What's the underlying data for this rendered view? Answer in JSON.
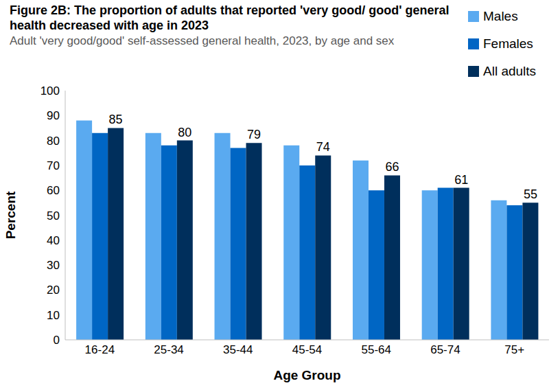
{
  "chart_data": {
    "type": "bar",
    "title": "Figure 2B: The proportion of adults that reported 'very good/ good' general health decreased with age in 2023",
    "subtitle": "Adult 'very good/good' self-assessed general health, 2023, by age and sex",
    "x_label": "Age Group",
    "y_label": "Percent",
    "categories": [
      "16-24",
      "25-34",
      "35-44",
      "45-54",
      "55-64",
      "65-74",
      "75+"
    ],
    "series": [
      {
        "name": "Males",
        "color": "#5aaaf0",
        "values": [
          88,
          83,
          83,
          78,
          72,
          60,
          56
        ]
      },
      {
        "name": "Females",
        "color": "#0066c4",
        "values": [
          83,
          78,
          77,
          70,
          60,
          61,
          54
        ]
      },
      {
        "name": "All adults",
        "color": "#002f5c",
        "values": [
          85,
          80,
          79,
          74,
          66,
          61,
          55
        ],
        "data_labels": true
      }
    ],
    "ylim": [
      0,
      100
    ],
    "yticks": [
      0,
      10,
      20,
      30,
      40,
      50,
      60,
      70,
      80,
      90,
      100
    ],
    "grid": false,
    "legend": "top-right"
  }
}
